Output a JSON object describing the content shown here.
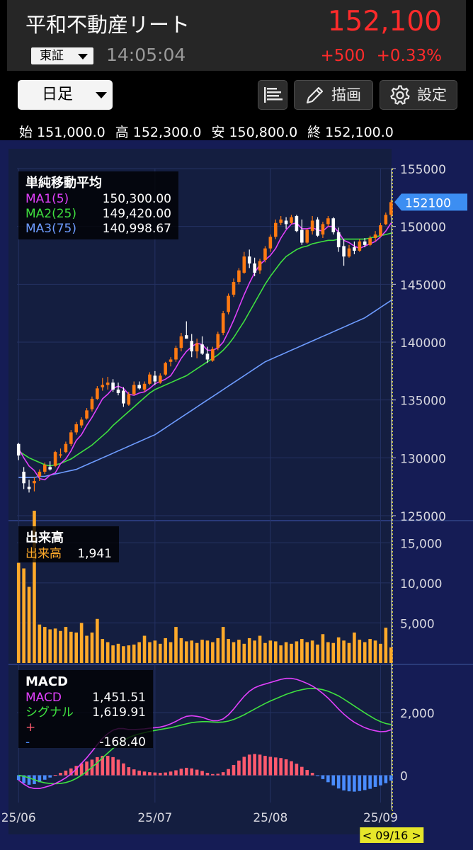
{
  "header": {
    "title": "平和不動産リート",
    "price": "152,100",
    "exchange": "東証",
    "time": "14:05:04",
    "change": "+500",
    "change_pct": "+0.33%"
  },
  "toolbar": {
    "period": "日足",
    "draw_label": "描画",
    "settings_label": "設定"
  },
  "ohlc": {
    "open_label": "始",
    "open": "151,000.0",
    "high_label": "高",
    "high": "152,300.0",
    "low_label": "安",
    "low": "150,800.0",
    "close_label": "終",
    "close": "152,100.0"
  },
  "colors": {
    "up": "#ff7a12",
    "down": "#ffffff",
    "ma1": "#e040fb",
    "ma2": "#3fe03f",
    "ma3": "#6e9cff",
    "volume": "#ffaa2a",
    "hist_pos": "#ff5a6e",
    "hist_neg": "#4a8cff",
    "bg": "#141e40",
    "price_tag": "#3c8ef2",
    "cursor": "#e6e62a"
  },
  "chart_data": [
    {
      "type": "candlestick",
      "title": "単純移動平均",
      "legend": [
        {
          "name": "MA1(5)",
          "value": "150,300.00"
        },
        {
          "name": "MA2(25)",
          "value": "149,420.00"
        },
        {
          "name": "MA3(75)",
          "value": "140,998.67"
        }
      ],
      "ylim": [
        125000,
        155000
      ],
      "y_ticks": [
        "155000",
        "150000",
        "145000",
        "140000",
        "135000",
        "130000",
        "125000"
      ],
      "y_tick_values": [
        155000,
        150000,
        145000,
        140000,
        135000,
        130000,
        125000
      ],
      "last_price_label": "152100",
      "last_price": 152100,
      "x_ticks": [
        "25/06",
        "25/07",
        "25/08",
        "25/09"
      ],
      "x_tick_index": [
        0,
        26,
        48,
        69
      ],
      "cursor_label": "< 09/16 >",
      "ohlc": [
        [
          131200,
          131300,
          129800,
          130200
        ],
        [
          128800,
          129200,
          127300,
          127800
        ],
        [
          127500,
          128100,
          127000,
          127300
        ],
        [
          127800,
          128300,
          127100,
          128000
        ],
        [
          128400,
          129000,
          128000,
          128800
        ],
        [
          128800,
          129600,
          128600,
          129400
        ],
        [
          129200,
          129700,
          128900,
          129000
        ],
        [
          129300,
          130600,
          129200,
          130500
        ],
        [
          130200,
          130800,
          130000,
          130300
        ],
        [
          130500,
          131400,
          130400,
          131200
        ],
        [
          131200,
          132400,
          131000,
          132200
        ],
        [
          132200,
          133100,
          132000,
          132900
        ],
        [
          132800,
          133500,
          132600,
          133300
        ],
        [
          133400,
          134300,
          133300,
          134100
        ],
        [
          134200,
          135300,
          134000,
          135100
        ],
        [
          135100,
          136200,
          135000,
          136000
        ],
        [
          136100,
          136900,
          135800,
          136300
        ],
        [
          136300,
          137000,
          135900,
          136500
        ],
        [
          136500,
          136800,
          135700,
          135900
        ],
        [
          135900,
          136500,
          135400,
          135600
        ],
        [
          135800,
          136100,
          134400,
          134700
        ],
        [
          134600,
          135700,
          134500,
          135500
        ],
        [
          135500,
          136600,
          135400,
          136300
        ],
        [
          136300,
          136600,
          135900,
          136000
        ],
        [
          135900,
          136600,
          135700,
          136400
        ],
        [
          136400,
          137400,
          136300,
          137200
        ],
        [
          137100,
          137500,
          136300,
          136600
        ],
        [
          136500,
          137300,
          136400,
          137100
        ],
        [
          137200,
          138300,
          137100,
          138200
        ],
        [
          138300,
          138700,
          137900,
          138500
        ],
        [
          138500,
          139700,
          138300,
          139500
        ],
        [
          139500,
          140800,
          139200,
          140500
        ],
        [
          140600,
          141800,
          140300,
          140300
        ],
        [
          140100,
          140700,
          138700,
          139200
        ],
        [
          139200,
          140300,
          138600,
          139900
        ],
        [
          139800,
          140500,
          138900,
          139000
        ],
        [
          139000,
          139600,
          138200,
          138500
        ],
        [
          138400,
          139600,
          138300,
          139400
        ],
        [
          139500,
          140900,
          139300,
          140700
        ],
        [
          140800,
          142700,
          140600,
          142500
        ],
        [
          142600,
          144200,
          142400,
          144000
        ],
        [
          144100,
          145500,
          143900,
          145200
        ],
        [
          145200,
          146400,
          145000,
          146200
        ],
        [
          146000,
          147800,
          145900,
          147400
        ],
        [
          147400,
          148000,
          146400,
          146800
        ],
        [
          146800,
          147300,
          145700,
          146000
        ],
        [
          146200,
          147200,
          145900,
          147000
        ],
        [
          147100,
          148300,
          146900,
          148100
        ],
        [
          148100,
          149300,
          147800,
          149100
        ],
        [
          149100,
          150600,
          148900,
          150300
        ],
        [
          150300,
          150900,
          150100,
          150600
        ],
        [
          150500,
          150800,
          149800,
          150200
        ],
        [
          150300,
          151000,
          150200,
          150800
        ],
        [
          150900,
          151000,
          149500,
          149600
        ],
        [
          149700,
          150600,
          148400,
          148600
        ],
        [
          148600,
          149800,
          148500,
          149700
        ],
        [
          149600,
          150900,
          149300,
          150500
        ],
        [
          150600,
          150800,
          149100,
          149200
        ],
        [
          149300,
          150400,
          149000,
          150200
        ],
        [
          150200,
          150900,
          150000,
          150700
        ],
        [
          150700,
          150800,
          149300,
          149500
        ],
        [
          149500,
          149900,
          147800,
          148200
        ],
        [
          148300,
          148900,
          146600,
          147400
        ],
        [
          147400,
          148400,
          147300,
          148100
        ],
        [
          148200,
          148700,
          147600,
          147900
        ],
        [
          147900,
          148900,
          147800,
          148700
        ],
        [
          148700,
          149000,
          148200,
          148400
        ],
        [
          148400,
          149200,
          148300,
          149000
        ],
        [
          149000,
          149600,
          148700,
          149300
        ],
        [
          149200,
          150300,
          149100,
          150100
        ],
        [
          150200,
          151200,
          150100,
          151000
        ],
        [
          151000,
          152300,
          150800,
          152100
        ]
      ],
      "ma1": [
        130800,
        130000,
        129300,
        128900,
        128200,
        128100,
        128500,
        128700,
        129500,
        129900,
        130600,
        131500,
        132000,
        132800,
        133500,
        134300,
        135100,
        135500,
        136000,
        136200,
        136000,
        135500,
        135400,
        135600,
        135700,
        136000,
        136400,
        136600,
        136800,
        137100,
        137800,
        138600,
        139200,
        139600,
        139900,
        139800,
        139300,
        139300,
        139500,
        140000,
        140900,
        141900,
        143000,
        144100,
        145100,
        146000,
        146700,
        147100,
        147500,
        148100,
        149000,
        149700,
        150200,
        150300,
        149800,
        149800,
        149900,
        149700,
        149600,
        150000,
        150000,
        149500,
        148800,
        148600,
        148300,
        148100,
        148300,
        148500,
        148700,
        149100,
        149600,
        150300
      ],
      "ma2": [
        130600,
        130300,
        130000,
        129800,
        129600,
        129400,
        129300,
        129400,
        129500,
        129700,
        129900,
        130200,
        130500,
        130800,
        131100,
        131500,
        131900,
        132300,
        132800,
        133200,
        133600,
        134000,
        134400,
        134800,
        135200,
        135600,
        135900,
        136100,
        136300,
        136500,
        136700,
        136900,
        137100,
        137400,
        137700,
        138000,
        138300,
        138600,
        138900,
        139300,
        139800,
        140400,
        141100,
        141800,
        142600,
        143400,
        144200,
        145000,
        145700,
        146300,
        146900,
        147400,
        147700,
        148000,
        148200,
        148300,
        148500,
        148600,
        148700,
        148800,
        148800,
        148900,
        148900,
        148900,
        148900,
        148900,
        148900,
        149000,
        149100,
        149200,
        149300,
        149420
      ],
      "ma3": [
        128300,
        128300,
        128300,
        128300,
        128400,
        128400,
        128500,
        128600,
        128700,
        128800,
        128900,
        129000,
        129200,
        129400,
        129600,
        129800,
        130000,
        130200,
        130400,
        130600,
        130800,
        131000,
        131200,
        131400,
        131600,
        131800,
        132000,
        132300,
        132600,
        132900,
        133200,
        133500,
        133800,
        134100,
        134400,
        134700,
        135000,
        135300,
        135600,
        135900,
        136200,
        136500,
        136800,
        137100,
        137400,
        137700,
        138000,
        138300,
        138500,
        138700,
        138900,
        139100,
        139300,
        139500,
        139700,
        139900,
        140100,
        140300,
        140500,
        140700,
        140900,
        141100,
        141300,
        141500,
        141700,
        141900,
        142100,
        142400,
        142700,
        143000,
        143300,
        143600
      ]
    },
    {
      "type": "bar",
      "title": "出来高",
      "legend": [
        {
          "name": "出来高",
          "value": "1,941"
        }
      ],
      "ylim": [
        0,
        17500
      ],
      "y_ticks": [
        "15,000",
        "10,000",
        "5,000"
      ],
      "y_tick_values": [
        15000,
        10000,
        5000
      ],
      "values": [
        12500,
        11800,
        9500,
        19000,
        4800,
        4500,
        4200,
        4300,
        4000,
        4500,
        3900,
        3800,
        5000,
        3400,
        3800,
        5500,
        3000,
        2600,
        2200,
        2400,
        2100,
        2200,
        2300,
        2600,
        3400,
        2600,
        2800,
        2400,
        3100,
        2600,
        4500,
        3100,
        2700,
        2800,
        2500,
        2900,
        2800,
        2600,
        3100,
        4500,
        3000,
        2600,
        2900,
        2400,
        3100,
        2800,
        3400,
        2500,
        2800,
        2700,
        2200,
        2600,
        2400,
        2700,
        3000,
        2600,
        2800,
        2300,
        3600,
        2600,
        2500,
        3200,
        2800,
        2500,
        3800,
        2900,
        2600,
        3000,
        2800,
        2400,
        4400,
        1941
      ]
    },
    {
      "type": "line",
      "title": "MACD",
      "legend": [
        {
          "name": "MACD",
          "value": "1,451.51"
        },
        {
          "name": "シグナル",
          "value": "1,619.91"
        },
        {
          "name": "+",
          "value": ""
        },
        {
          "name": "-",
          "value": "-168.40"
        }
      ],
      "ylim": [
        -800,
        3400
      ],
      "y_ticks": [
        "2,000",
        "0"
      ],
      "y_tick_values": [
        2000,
        0
      ],
      "macd": [
        -150,
        -280,
        -380,
        -420,
        -420,
        -380,
        -330,
        -260,
        -180,
        -80,
        40,
        200,
        380,
        560,
        760,
        980,
        1180,
        1330,
        1440,
        1490,
        1490,
        1460,
        1460,
        1470,
        1480,
        1500,
        1520,
        1540,
        1580,
        1640,
        1720,
        1810,
        1880,
        1900,
        1880,
        1850,
        1790,
        1740,
        1740,
        1800,
        1930,
        2110,
        2320,
        2520,
        2680,
        2790,
        2860,
        2910,
        2960,
        3010,
        3060,
        3090,
        3090,
        3060,
        3000,
        2930,
        2850,
        2740,
        2610,
        2460,
        2290,
        2110,
        1950,
        1810,
        1690,
        1600,
        1520,
        1460,
        1420,
        1390,
        1400,
        1451.51
      ],
      "signal": [
        0,
        -30,
        -80,
        -140,
        -200,
        -240,
        -260,
        -270,
        -260,
        -230,
        -180,
        -100,
        0,
        120,
        260,
        400,
        560,
        710,
        860,
        990,
        1110,
        1200,
        1270,
        1320,
        1360,
        1400,
        1430,
        1460,
        1490,
        1520,
        1560,
        1600,
        1640,
        1680,
        1700,
        1710,
        1710,
        1700,
        1690,
        1700,
        1730,
        1780,
        1850,
        1930,
        2020,
        2110,
        2200,
        2290,
        2370,
        2440,
        2510,
        2580,
        2640,
        2690,
        2730,
        2760,
        2770,
        2760,
        2730,
        2680,
        2610,
        2530,
        2430,
        2320,
        2210,
        2100,
        1990,
        1890,
        1790,
        1710,
        1650,
        1619.91
      ],
      "histogram": [
        -150,
        -250,
        -300,
        -280,
        -220,
        -140,
        -70,
        10,
        80,
        150,
        220,
        300,
        380,
        440,
        500,
        580,
        620,
        620,
        580,
        500,
        380,
        260,
        190,
        150,
        120,
        100,
        90,
        80,
        90,
        120,
        160,
        210,
        240,
        220,
        180,
        140,
        80,
        40,
        50,
        100,
        200,
        330,
        470,
        590,
        660,
        680,
        660,
        620,
        590,
        570,
        550,
        510,
        450,
        370,
        270,
        170,
        80,
        -20,
        -120,
        -220,
        -320,
        -420,
        -480,
        -510,
        -520,
        -500,
        -470,
        -430,
        -370,
        -320,
        -250,
        -168.4
      ]
    }
  ]
}
